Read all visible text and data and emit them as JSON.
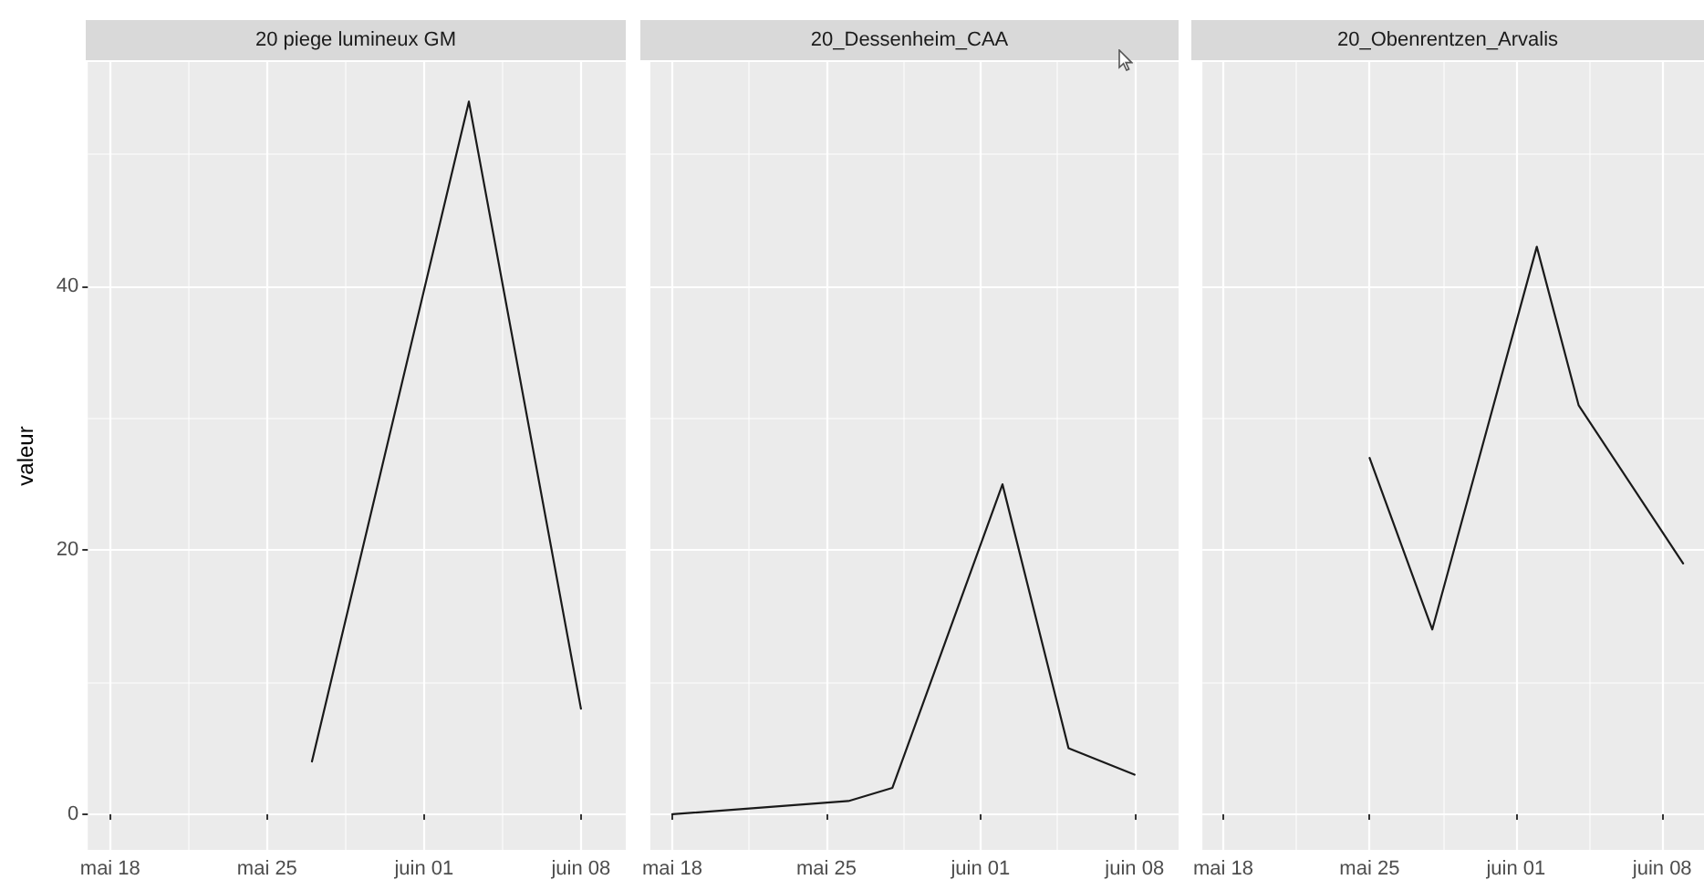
{
  "chart_data": [
    {
      "type": "line",
      "title": "20 piege lumineux GM",
      "ylabel": "valeur",
      "grid": true,
      "x": [
        "--05-27",
        "--06-03",
        "--06-08"
      ],
      "series": [
        {
          "color": "#1a1a1a",
          "values": [
            4,
            54,
            8
          ]
        }
      ],
      "xlim": [
        "--05-17",
        "--06-10"
      ],
      "xticks": [
        {
          "value": "--05-18",
          "label": "mai 18"
        },
        {
          "value": "--05-25",
          "label": "mai 25"
        },
        {
          "value": "--06-01",
          "label": "juin 01"
        },
        {
          "value": "--06-08",
          "label": "juin 08"
        }
      ],
      "ylim": [
        -2.7,
        57
      ],
      "yticks": [
        0,
        20,
        40
      ]
    },
    {
      "type": "line",
      "title": "20_Dessenheim_CAA",
      "grid": true,
      "tick_labels": "x",
      "x": [
        "--05-18",
        "--05-26",
        "--05-28",
        "--06-02",
        "--06-05",
        "--06-08"
      ],
      "series": [
        {
          "color": "#1a1a1a",
          "values": [
            0,
            1,
            2,
            25,
            5,
            3
          ]
        }
      ],
      "xlim": [
        "--05-17",
        "--06-10"
      ],
      "xticks": [
        {
          "value": "--05-18",
          "label": "mai 18"
        },
        {
          "value": "--05-25",
          "label": "mai 25"
        },
        {
          "value": "--06-01",
          "label": "juin 01"
        },
        {
          "value": "--06-08",
          "label": "juin 08"
        }
      ],
      "ylim": [
        -2.7,
        57
      ],
      "yticks": [
        0,
        20,
        40
      ]
    },
    {
      "type": "line",
      "title": "20_Obenrentzen_Arvalis",
      "grid": true,
      "tick_labels": "x",
      "x": [
        "--05-25",
        "--05-28",
        "--06-02",
        "--06-04",
        "--06-09"
      ],
      "series": [
        {
          "color": "#1a1a1a",
          "values": [
            27,
            14,
            43,
            31,
            19
          ]
        }
      ],
      "xlim": [
        "--05-17",
        "--06-10"
      ],
      "xticks": [
        {
          "value": "--05-18",
          "label": "mai 18"
        },
        {
          "value": "--05-25",
          "label": "mai 25"
        },
        {
          "value": "--06-01",
          "label": "juin 01"
        },
        {
          "value": "--06-08",
          "label": "juin 08"
        }
      ],
      "ylim": [
        -2.7,
        57
      ],
      "yticks": [
        0,
        20,
        40
      ]
    }
  ]
}
